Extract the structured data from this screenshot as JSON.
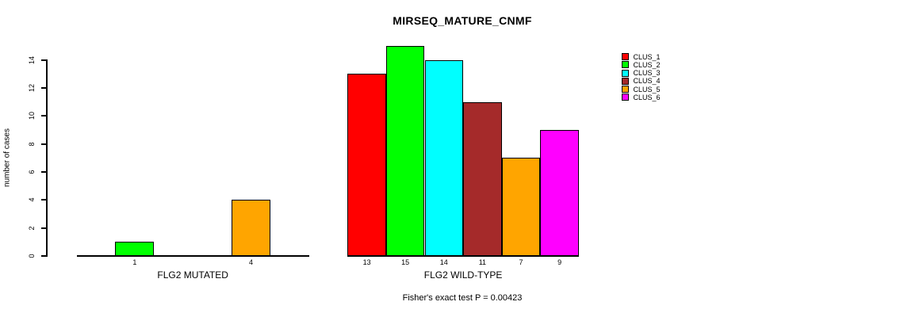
{
  "chart_data": {
    "type": "bar",
    "title": "MIRSEQ_MATURE_CNMF",
    "ylabel": "number of cases",
    "ylim": [
      0,
      14
    ],
    "yticks": [
      0,
      2,
      4,
      6,
      8,
      10,
      12,
      14
    ],
    "grid": false,
    "legend_position": "right",
    "annotation": "Fisher's exact test P = 0.00423",
    "series": [
      {
        "name": "CLUS_1",
        "color": "#FF0000"
      },
      {
        "name": "CLUS_2",
        "color": "#00FF00"
      },
      {
        "name": "CLUS_3",
        "color": "#00FFFF"
      },
      {
        "name": "CLUS_4",
        "color": "#A52A2A"
      },
      {
        "name": "CLUS_5",
        "color": "#FFA500"
      },
      {
        "name": "CLUS_6",
        "color": "#FF00FF"
      }
    ],
    "groups": [
      {
        "label": "FLG2 MUTATED",
        "values": [
          0,
          1,
          0,
          0,
          4,
          0
        ]
      },
      {
        "label": "FLG2 WILD-TYPE",
        "values": [
          13,
          15,
          14,
          11,
          7,
          9
        ]
      }
    ]
  }
}
